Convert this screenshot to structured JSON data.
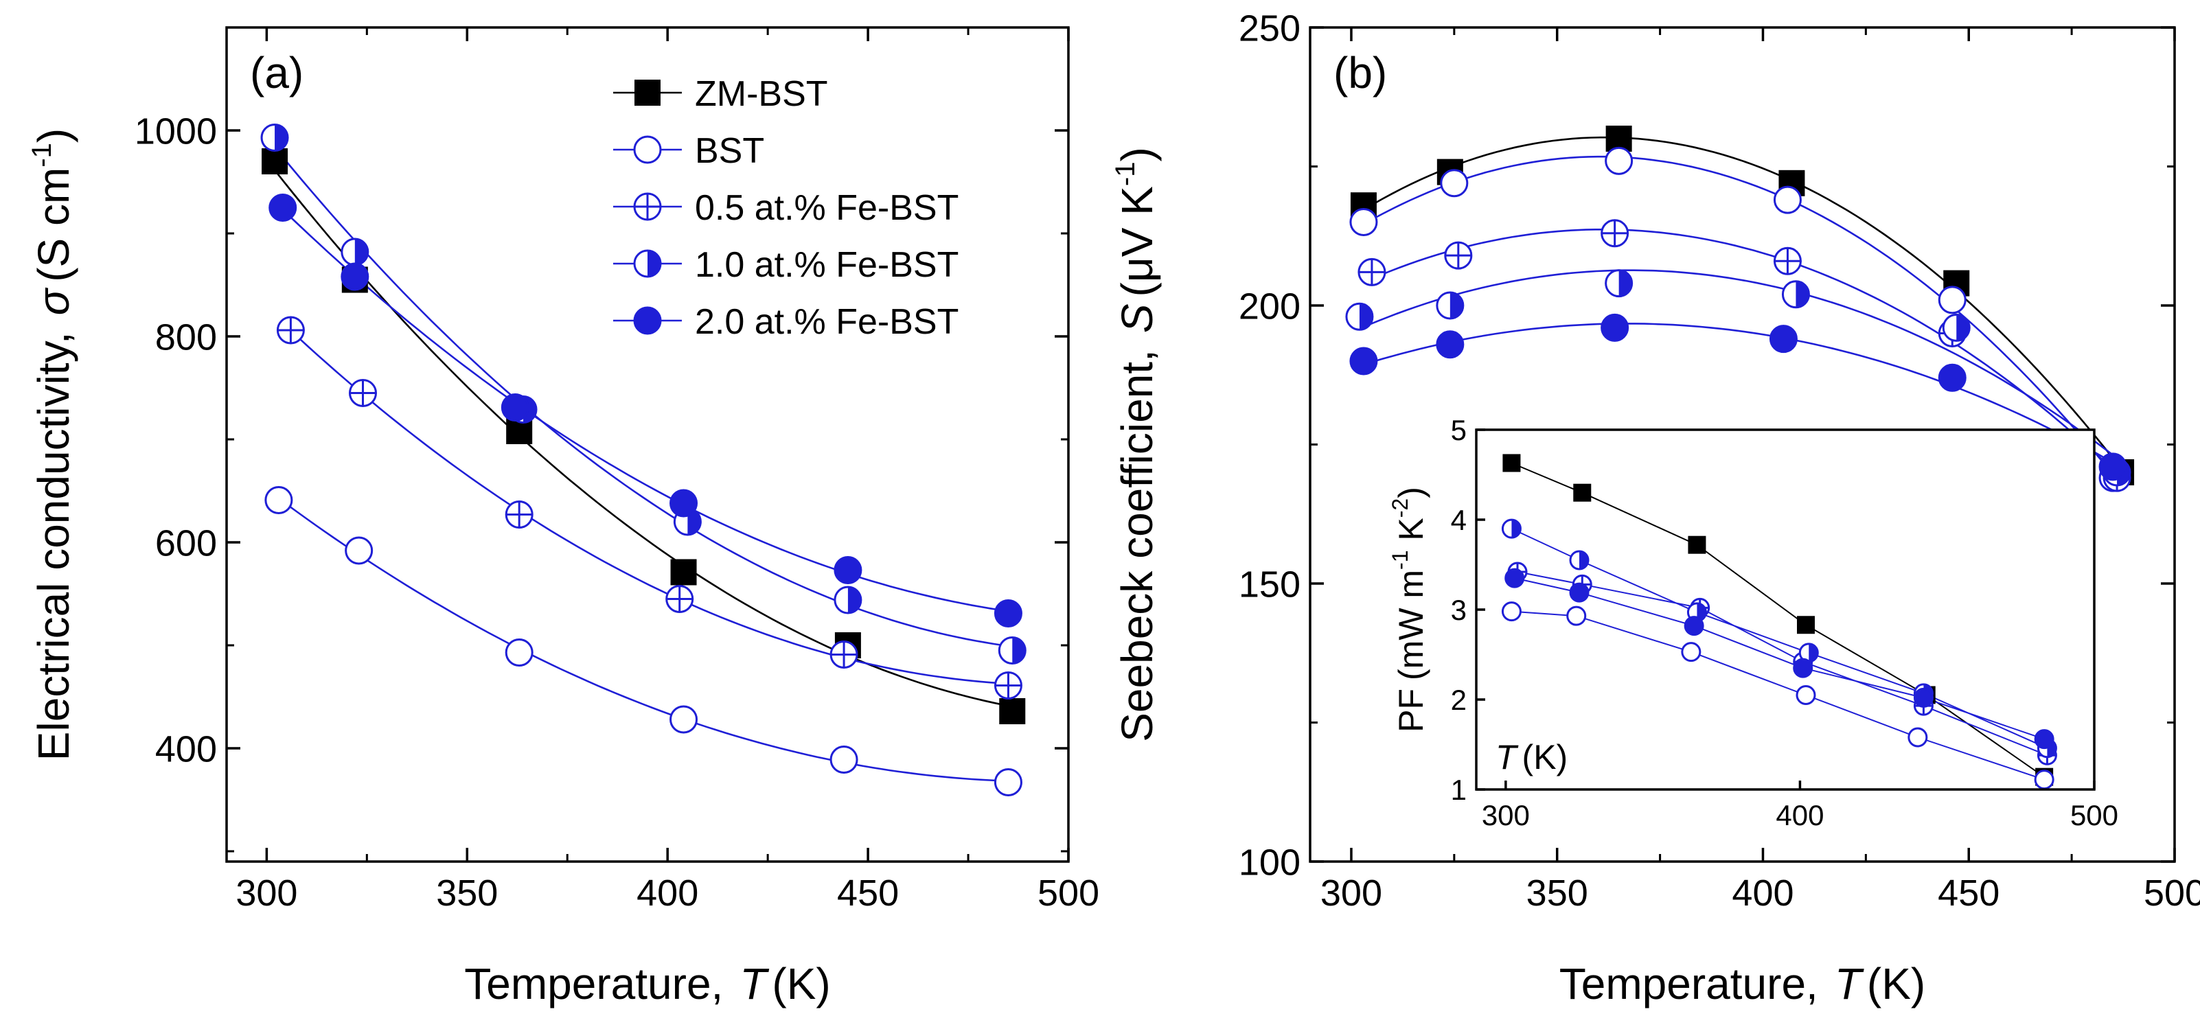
{
  "colors": {
    "black_series": "#000000",
    "blue_series": "#1f1fd6"
  },
  "panels": {
    "a_label": "(a)",
    "b_label": "(b)"
  },
  "legend": {
    "entries": [
      "ZM-BST",
      "BST",
      "0.5 at.% Fe-BST",
      "1.0 at.% Fe-BST",
      "2.0 at.% Fe-BST"
    ]
  },
  "chart_data": [
    {
      "id": "a",
      "type": "scatter",
      "title": "",
      "xlabel": "Temperature,",
      "xlabel_symbol": "T",
      "xlabel_unit": "(K)",
      "ylabel": "Electrical conductivity,",
      "ylabel_symbol": "σ",
      "ylabel_unit": "(S cm",
      "ylabel_unit_exp": "-1",
      "ylabel_unit_close": ")",
      "xlim": [
        290,
        500
      ],
      "ylim": [
        290,
        1100
      ],
      "xticks": [
        300,
        350,
        400,
        450,
        500
      ],
      "yticks": [
        400,
        600,
        800,
        1000
      ],
      "xtick_labels": [
        "300",
        "350",
        "400",
        "450",
        "500"
      ],
      "ytick_labels": [
        "400",
        "600",
        "800",
        "1000"
      ],
      "series": [
        {
          "name": "ZM-BST",
          "marker": "square",
          "color": "#000000",
          "x": [
            302,
            322,
            363,
            404,
            445,
            486
          ],
          "y": [
            970,
            855,
            708,
            571,
            500,
            436
          ]
        },
        {
          "name": "BST",
          "marker": "open",
          "color": "#1f1fd6",
          "x": [
            303,
            323,
            363,
            404,
            444,
            485
          ],
          "y": [
            641,
            592,
            493,
            428,
            389,
            367
          ]
        },
        {
          "name": "0.5 at.% Fe-BST",
          "marker": "cross",
          "color": "#1f1fd6",
          "x": [
            306,
            324,
            363,
            403,
            444,
            485
          ],
          "y": [
            806,
            745,
            627,
            545,
            491,
            461
          ]
        },
        {
          "name": "1.0 at.% Fe-BST",
          "marker": "half",
          "color": "#1f1fd6",
          "x": [
            302,
            322,
            364,
            405,
            445,
            486
          ],
          "y": [
            993,
            882,
            729,
            620,
            544,
            495
          ]
        },
        {
          "name": "2.0 at.% Fe-BST",
          "marker": "filled",
          "color": "#1f1fd6",
          "x": [
            304,
            322,
            362,
            404,
            445,
            485
          ],
          "y": [
            925,
            858,
            731,
            638,
            573,
            531
          ]
        }
      ]
    },
    {
      "id": "b",
      "type": "scatter",
      "title": "",
      "xlabel": "Temperature,",
      "xlabel_symbol": "T",
      "xlabel_unit": "(K)",
      "ylabel": "Seebeck coefficient,",
      "ylabel_symbol": "S",
      "ylabel_unit": "(μV K",
      "ylabel_unit_exp": "-1",
      "ylabel_unit_close": ")",
      "xlim": [
        290,
        500
      ],
      "ylim": [
        100,
        250
      ],
      "xticks": [
        300,
        350,
        400,
        450,
        500
      ],
      "yticks": [
        100,
        150,
        200,
        250
      ],
      "xtick_labels": [
        "300",
        "350",
        "400",
        "450",
        "500"
      ],
      "ytick_labels": [
        "100",
        "150",
        "200",
        "250"
      ],
      "series": [
        {
          "name": "ZM-BST",
          "marker": "square",
          "color": "#000000",
          "x": [
            303,
            324,
            365,
            407,
            447,
            487
          ],
          "y": [
            218,
            224,
            230,
            222,
            204,
            170
          ]
        },
        {
          "name": "BST",
          "marker": "open",
          "color": "#1f1fd6",
          "x": [
            303,
            325,
            365,
            406,
            446,
            485
          ],
          "y": [
            215,
            222,
            226,
            219,
            201,
            169
          ]
        },
        {
          "name": "0.5 at.% Fe-BST",
          "marker": "cross",
          "color": "#1f1fd6",
          "x": [
            305,
            326,
            364,
            406,
            446,
            486
          ],
          "y": [
            206,
            209,
            213,
            208,
            195,
            169
          ]
        },
        {
          "name": "1.0 at.% Fe-BST",
          "marker": "half",
          "color": "#1f1fd6",
          "x": [
            302,
            324,
            365,
            408,
            447,
            486
          ],
          "y": [
            198,
            200,
            204,
            202,
            196,
            170
          ]
        },
        {
          "name": "2.0 at.% Fe-BST",
          "marker": "filled",
          "color": "#1f1fd6",
          "x": [
            303,
            324,
            364,
            405,
            446,
            485
          ],
          "y": [
            190,
            193,
            196,
            194,
            187,
            171
          ]
        }
      ]
    },
    {
      "id": "inset",
      "type": "line",
      "title": "",
      "xlabel": "",
      "ylabel": "PF",
      "ylabel_unit": "(mW m",
      "ylabel_unit_exp": "-1",
      "ylabel_unit_mid": " K",
      "ylabel_unit_exp2": "-2",
      "ylabel_unit_close": ")",
      "inner_label_symbol": "T",
      "inner_label_unit": "(K)",
      "xlim": [
        290,
        500
      ],
      "ylim": [
        1,
        5
      ],
      "xticks": [
        300,
        400,
        500
      ],
      "yticks": [
        1,
        2,
        3,
        4,
        5
      ],
      "xtick_labels": [
        "300",
        "400",
        "500"
      ],
      "ytick_labels": [
        "1",
        "2",
        "3",
        "4",
        "5"
      ],
      "series": [
        {
          "name": "ZM-BST",
          "marker": "square",
          "color": "#000000",
          "x": [
            302,
            326,
            365,
            402,
            443,
            483
          ],
          "y": [
            4.63,
            4.3,
            3.72,
            2.83,
            2.05,
            1.14
          ]
        },
        {
          "name": "BST",
          "marker": "open",
          "color": "#1f1fd6",
          "x": [
            302,
            324,
            363,
            402,
            440,
            483
          ],
          "y": [
            2.98,
            2.93,
            2.53,
            2.05,
            1.58,
            1.11
          ]
        },
        {
          "name": "0.5 at.% Fe-BST",
          "marker": "cross",
          "color": "#1f1fd6",
          "x": [
            304,
            326,
            366,
            401,
            442,
            484
          ],
          "y": [
            3.42,
            3.28,
            3.02,
            2.42,
            1.93,
            1.38
          ]
        },
        {
          "name": "1.0 at.% Fe-BST",
          "marker": "half",
          "color": "#1f1fd6",
          "x": [
            302,
            325,
            365,
            403,
            442,
            484
          ],
          "y": [
            3.9,
            3.55,
            2.97,
            2.52,
            2.07,
            1.46
          ]
        },
        {
          "name": "2.0 at.% Fe-BST",
          "marker": "filled",
          "color": "#1f1fd6",
          "x": [
            303,
            325,
            364,
            401,
            442,
            483
          ],
          "y": [
            3.35,
            3.19,
            2.82,
            2.35,
            2.02,
            1.56
          ]
        }
      ]
    }
  ]
}
